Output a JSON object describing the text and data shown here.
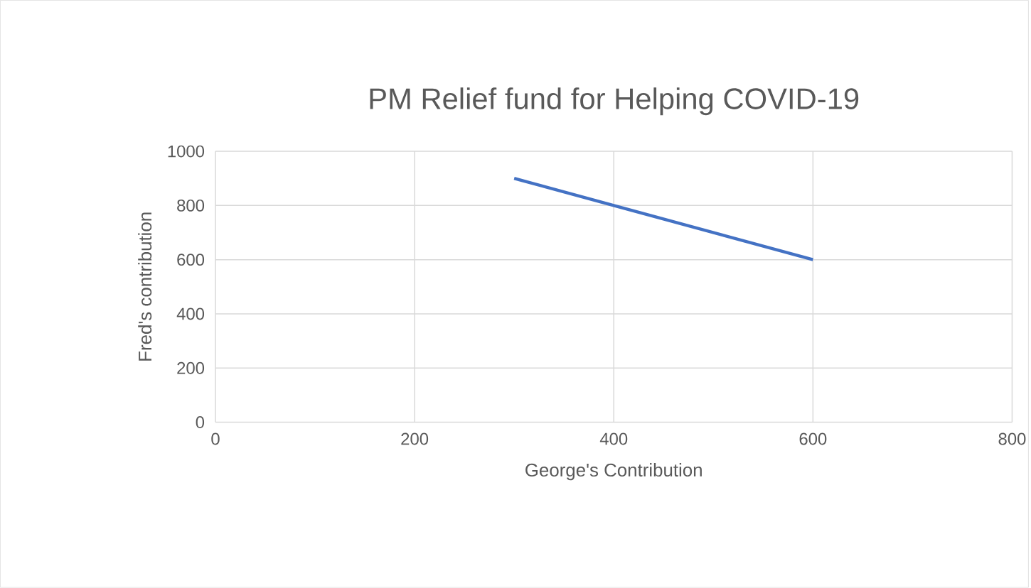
{
  "chart_data": {
    "type": "line",
    "title": "PM Relief fund for Helping COVID-19",
    "xlabel": "George's Contribution",
    "ylabel": "Fred's contribution",
    "x": [
      300,
      400,
      600
    ],
    "series": [
      {
        "color": "#4472c4",
        "values": [
          900,
          800,
          600
        ]
      }
    ],
    "xlim": [
      0,
      800
    ],
    "ylim": [
      0,
      1000
    ],
    "xticks": [
      0,
      200,
      400,
      600,
      800
    ],
    "yticks": [
      0,
      200,
      400,
      600,
      800,
      1000
    ],
    "grid": true,
    "marker": "none",
    "line_style": "solid"
  }
}
